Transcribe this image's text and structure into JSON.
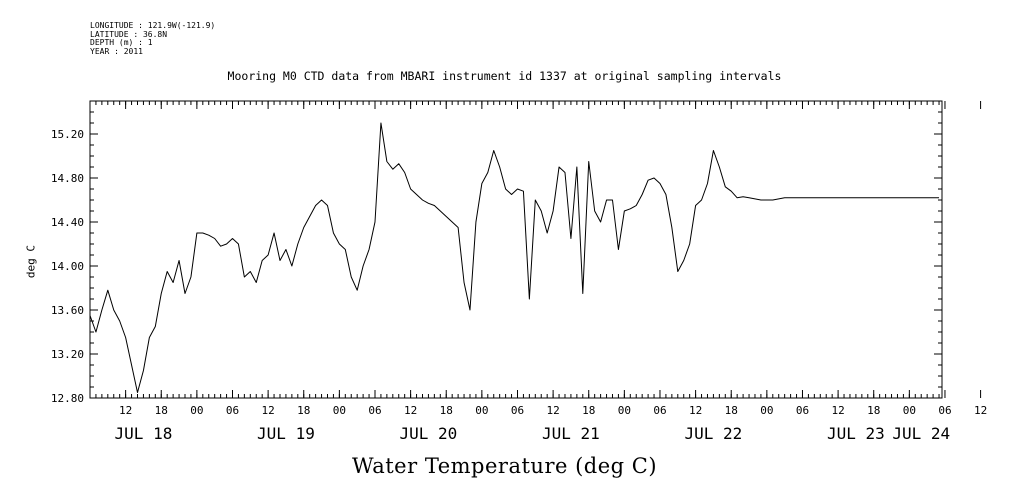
{
  "meta": {
    "longitude": "LONGITUDE : 121.9W(-121.9)",
    "latitude": "LATITUDE : 36.8N",
    "depth": "DEPTH (m) : 1",
    "year": "YEAR : 2011"
  },
  "chart_data": {
    "type": "line",
    "title": "Mooring M0 CTD data from MBARI instrument id 1337 at original sampling intervals",
    "ylabel": "deg C",
    "xlabel": "Water Temperature (deg C)",
    "ylim": [
      12.8,
      15.5
    ],
    "yticks": [
      "12.80",
      "13.20",
      "13.60",
      "14.00",
      "14.40",
      "14.80",
      "15.20"
    ],
    "xlim_hours": [
      0,
      143.5
    ],
    "hour_tick_labels": [
      "12",
      "18",
      "00",
      "06",
      "12",
      "18",
      "00",
      "06",
      "12",
      "18",
      "00",
      "06",
      "12",
      "18",
      "00",
      "06",
      "12",
      "18",
      "00",
      "06",
      "12",
      "18",
      "00",
      "06",
      "12",
      "18",
      "00",
      "06"
    ],
    "day_labels": [
      "JUL 18",
      "JUL 19",
      "JUL 20",
      "JUL 21",
      "JUL 22",
      "JUL 23",
      "JUL 24"
    ],
    "x_hours_since_jul18_0600": [
      0,
      1,
      2,
      3,
      4,
      5,
      6,
      7,
      8,
      9,
      10,
      11,
      12,
      13,
      14,
      15,
      16,
      17,
      18,
      19,
      20,
      21,
      22,
      23,
      24,
      25,
      26,
      27,
      28,
      29,
      30,
      31,
      32,
      33,
      34,
      35,
      36,
      37,
      38,
      39,
      40,
      41,
      42,
      43,
      44,
      45,
      46,
      47,
      48,
      49,
      50,
      51,
      52,
      53,
      54,
      55,
      56,
      57,
      58,
      59,
      60,
      61,
      62,
      63,
      64,
      65,
      66,
      67,
      68,
      69,
      70,
      71,
      72,
      73,
      74,
      75,
      76,
      77,
      78,
      79,
      80,
      81,
      82,
      83,
      84,
      85,
      86,
      87,
      88,
      89,
      90,
      91,
      92,
      93,
      94,
      95,
      96,
      97,
      98,
      99,
      100,
      101,
      102,
      103,
      104,
      105,
      106,
      107,
      108,
      109,
      110,
      111,
      112,
      113,
      114,
      115,
      116,
      117,
      118,
      119,
      120,
      121,
      122,
      123,
      124,
      125,
      126,
      127,
      128,
      129,
      130,
      131,
      132,
      133,
      134,
      135,
      136,
      137,
      138,
      139,
      140,
      141,
      142,
      143
    ],
    "series": [
      {
        "values": [
          13.55,
          13.4,
          13.6,
          13.78,
          13.6,
          13.5,
          13.35,
          13.1,
          12.85,
          13.05,
          13.35,
          13.45,
          13.75,
          13.95,
          13.85,
          14.05,
          13.75,
          13.9,
          14.3,
          14.3,
          14.28,
          14.25,
          14.18,
          14.2,
          14.25,
          14.2,
          13.9,
          13.95,
          13.85,
          14.05,
          14.1,
          14.3,
          14.05,
          14.15,
          14.0,
          14.2,
          14.35,
          14.45,
          14.55,
          14.6,
          14.55,
          14.3,
          14.2,
          14.15,
          13.9,
          13.78,
          14.0,
          14.15,
          14.4,
          15.3,
          14.95,
          14.88,
          14.93,
          14.85,
          14.7,
          14.65,
          14.6,
          14.57,
          14.55,
          14.5,
          14.45,
          14.4,
          14.35,
          13.85,
          13.6,
          14.4,
          14.75,
          14.85,
          15.05,
          14.9,
          14.7,
          14.65,
          14.7,
          14.68,
          13.7,
          14.6,
          14.5,
          14.3,
          14.5,
          14.9,
          14.85,
          14.25,
          14.9,
          13.75,
          14.95,
          14.5,
          14.4,
          14.6,
          14.6,
          14.15,
          14.5,
          14.52,
          14.55,
          14.65,
          14.78,
          14.8,
          14.75,
          14.65,
          14.35,
          13.95,
          14.05,
          14.2,
          14.55,
          14.6,
          14.75,
          15.05,
          14.9,
          14.72,
          14.68,
          14.62,
          14.63,
          14.62,
          14.61,
          14.6,
          14.6,
          14.6,
          14.61,
          14.62,
          14.62,
          14.62,
          14.62,
          14.62,
          14.62,
          14.62,
          14.62,
          14.62,
          14.62,
          14.62,
          14.62,
          14.62,
          14.62,
          14.62,
          14.62,
          14.62,
          14.62,
          14.62,
          14.62,
          14.62,
          14.62,
          14.62,
          14.62,
          14.62,
          14.62,
          14.62
        ]
      }
    ]
  }
}
